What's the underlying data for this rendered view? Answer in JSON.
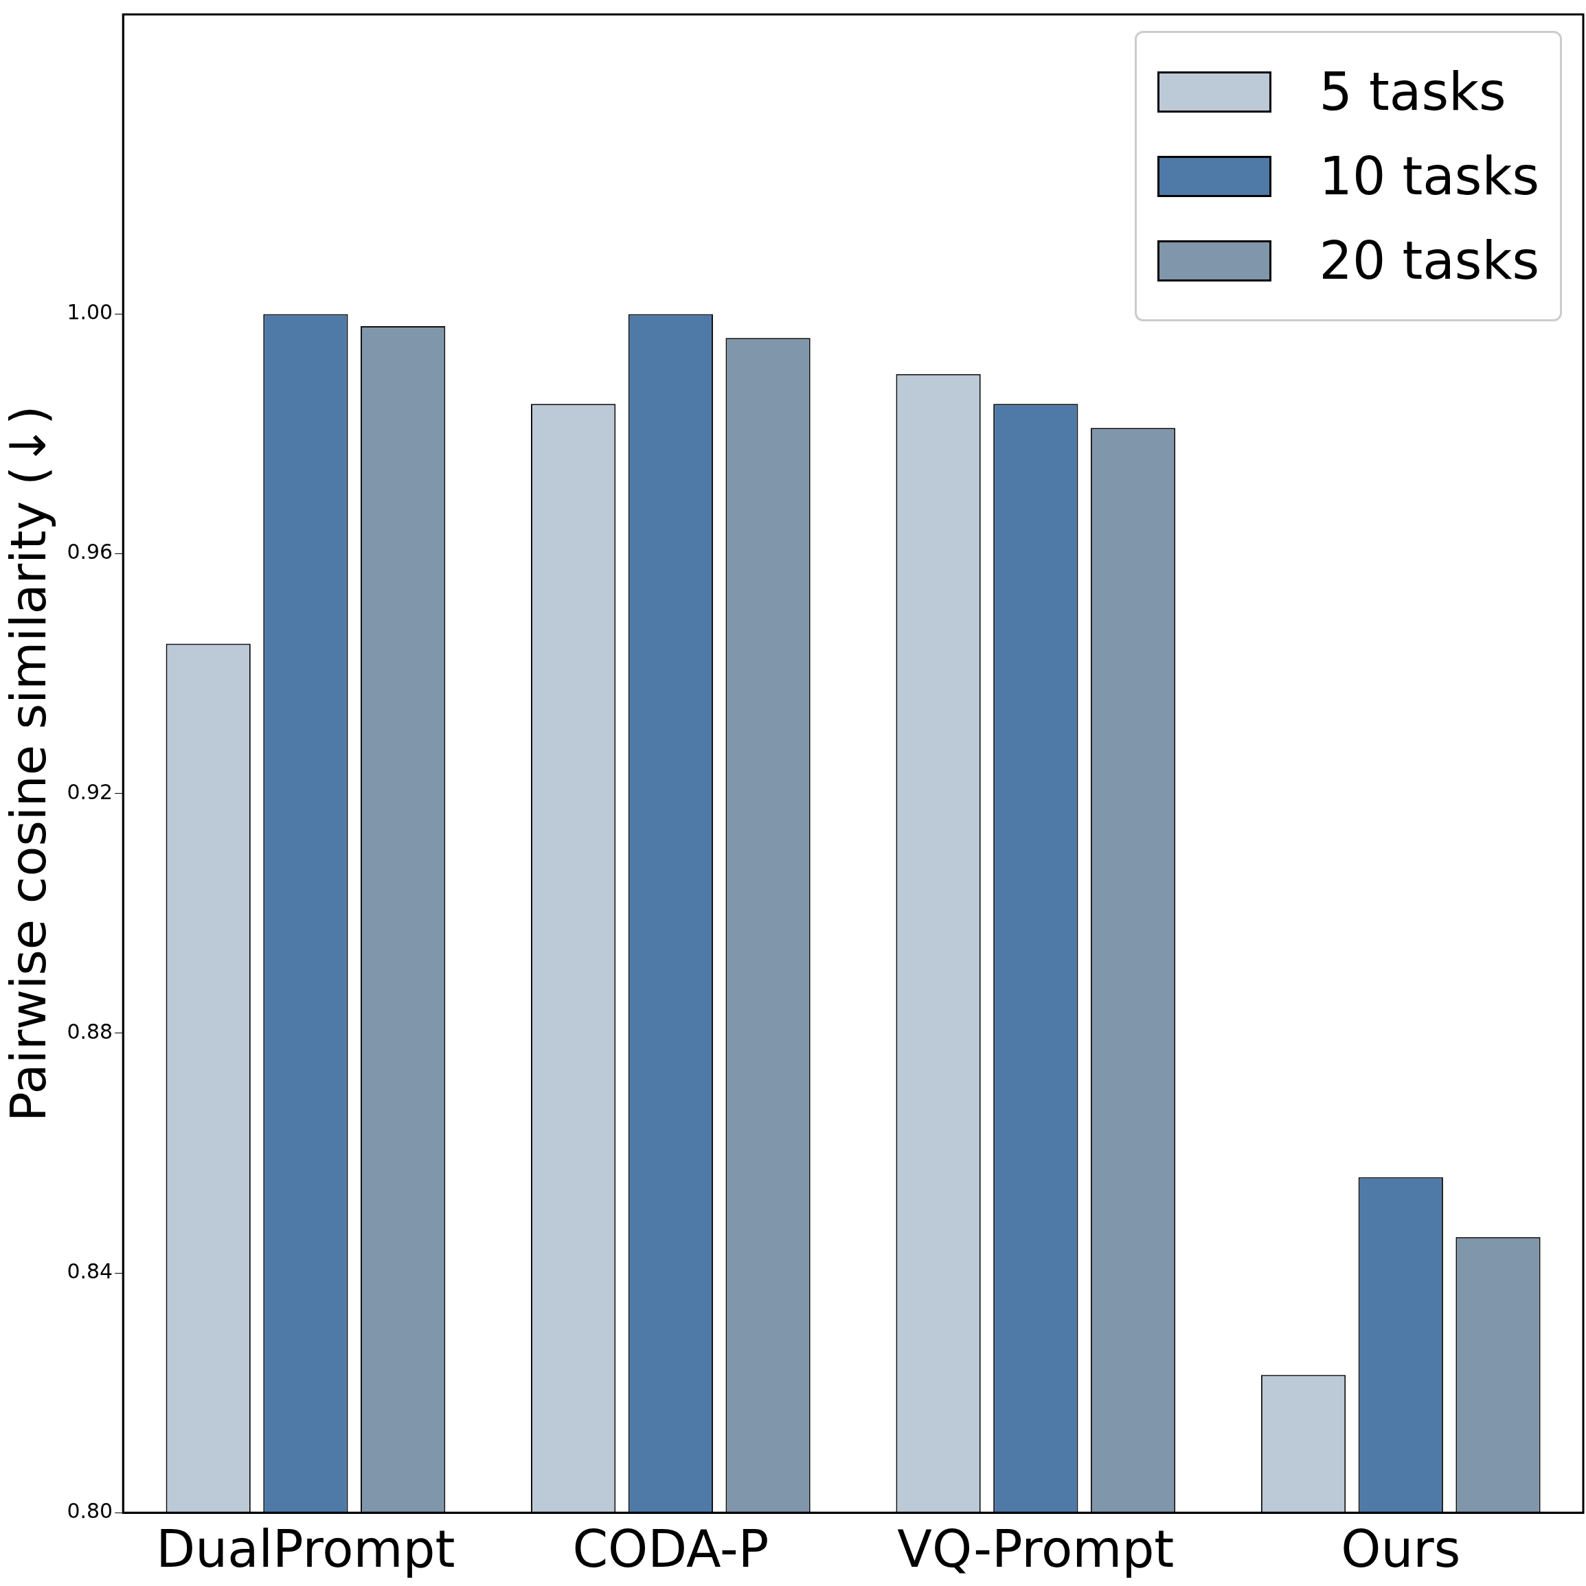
{
  "chart_data": {
    "type": "bar",
    "ylabel": "Pairwise cosine similarity (↓)",
    "categories": [
      "DualPrompt",
      "CODA-P",
      "VQ-Prompt",
      "Ours"
    ],
    "series": [
      {
        "name": "5 tasks",
        "color": "#bcc9d6",
        "values": [
          0.945,
          0.985,
          0.99,
          0.823
        ]
      },
      {
        "name": "10 tasks",
        "color": "#4f7aa8",
        "values": [
          1.0,
          1.0,
          0.985,
          0.856
        ]
      },
      {
        "name": "20 tasks",
        "color": "#8096ab",
        "values": [
          0.998,
          0.996,
          0.981,
          0.846
        ]
      }
    ],
    "ylim": [
      0.8,
      1.05
    ],
    "yticks": [
      {
        "value": 0.8,
        "label": "0.80"
      },
      {
        "value": 0.84,
        "label": "0.84"
      },
      {
        "value": 0.88,
        "label": "0.88"
      },
      {
        "value": 0.92,
        "label": "0.92"
      },
      {
        "value": 0.96,
        "label": "0.96"
      },
      {
        "value": 1.0,
        "label": "1.00"
      }
    ],
    "grid": false,
    "legend": "top right"
  }
}
